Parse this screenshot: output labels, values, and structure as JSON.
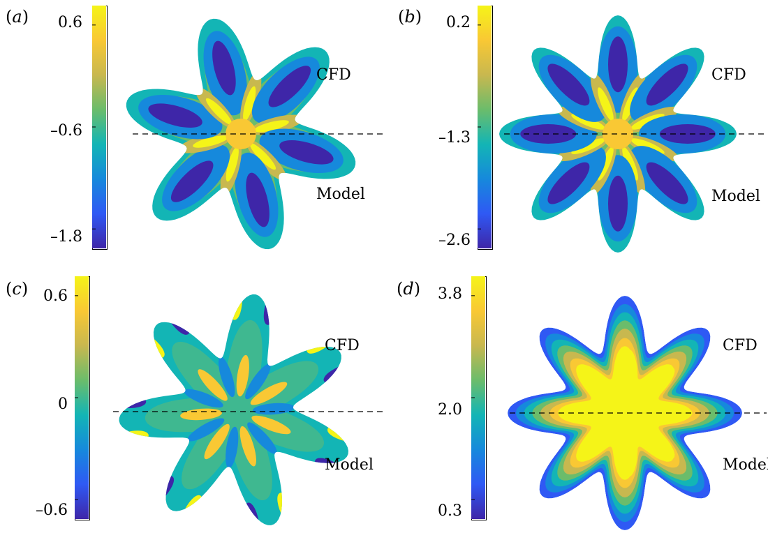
{
  "colorscale": [
    "#3e26a8",
    "#2f59f4",
    "#1689dc",
    "#13b5b5",
    "#6bbc6b",
    "#c8b84f",
    "#f9c834",
    "#f5f418"
  ],
  "panels": [
    {
      "id": "a",
      "label": "a",
      "colorbar": {
        "ticks": [
          {
            "value": 0.6,
            "label": "0.6"
          },
          {
            "value": -0.6,
            "label": "–0.6"
          },
          {
            "value": -1.8,
            "label": "–1.8"
          }
        ]
      },
      "lobes": 6,
      "field_type": "lobes",
      "inner_lobes": 6,
      "labels": {
        "top": "CFD",
        "bottom": "Model"
      }
    },
    {
      "id": "b",
      "label": "b",
      "colorbar": {
        "ticks": [
          {
            "value": 0.2,
            "label": "0.2"
          },
          {
            "value": -1.3,
            "label": "–1.3"
          },
          {
            "value": -2.6,
            "label": "–2.6"
          }
        ]
      },
      "lobes": 8,
      "field_type": "lobes",
      "inner_lobes": 8,
      "labels": {
        "top": "CFD",
        "bottom": "Model"
      }
    },
    {
      "id": "c",
      "label": "c",
      "colorbar": {
        "ticks": [
          {
            "value": 0.6,
            "label": "0.6"
          },
          {
            "value": 0,
            "label": "0"
          },
          {
            "value": -0.6,
            "label": "–0.6"
          }
        ]
      },
      "lobes": 7,
      "field_type": "edge",
      "inner_lobes": 14,
      "labels": {
        "top": "CFD",
        "bottom": "Model"
      }
    },
    {
      "id": "d",
      "label": "d",
      "colorbar": {
        "ticks": [
          {
            "value": 3.8,
            "label": "3.8"
          },
          {
            "value": 2.0,
            "label": "2.0"
          },
          {
            "value": 0.3,
            "label": "0.3"
          }
        ]
      },
      "lobes": 8,
      "field_type": "radial",
      "inner_lobes": 8,
      "labels": {
        "top": "CFD",
        "bottom": "Model"
      }
    }
  ]
}
